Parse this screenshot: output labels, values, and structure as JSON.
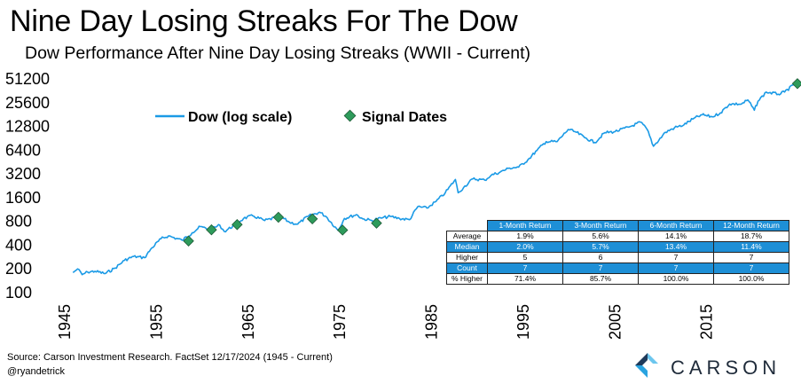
{
  "title": "Nine Day Losing Streaks For The Dow",
  "subtitle": "Dow Performance After Nine Day Losing Streaks (WWII - Current)",
  "colors": {
    "line": "#1a9ae6",
    "marker": "#2e9b5b",
    "table_header": "#1e8fd6"
  },
  "chart_data": {
    "type": "line",
    "y_scale": "log2",
    "ylim": [
      100,
      51200
    ],
    "yticks": [
      "51200",
      "25600",
      "12800",
      "6400",
      "3200",
      "1600",
      "800",
      "400",
      "200",
      "100"
    ],
    "xticks": [
      "1945",
      "1955",
      "1965",
      "1975",
      "1985",
      "1995",
      "2005",
      "2015"
    ],
    "xlim": [
      1945,
      2025
    ],
    "legend": {
      "line": "Dow (log scale)",
      "markers": "Signal Dates"
    },
    "series": [
      {
        "name": "Dow (log scale)",
        "x": [
          1945.9,
          1946.4,
          1946.9,
          1947.5,
          1948.3,
          1949.4,
          1950.5,
          1951.5,
          1952.5,
          1953.7,
          1954.5,
          1955.5,
          1956.3,
          1957.8,
          1958.9,
          1959.8,
          1960.8,
          1961.9,
          1962.4,
          1963.5,
          1964.5,
          1965.5,
          1966.8,
          1968.5,
          1969.5,
          1970.4,
          1971.5,
          1972.8,
          1973.5,
          1974.8,
          1975.5,
          1976.8,
          1977.5,
          1978.5,
          1979.5,
          1980.5,
          1981.5,
          1982.6,
          1983.5,
          1984.5,
          1985.5,
          1986.5,
          1987.6,
          1987.9,
          1988.5,
          1989.5,
          1990.8,
          1991.5,
          1992.5,
          1993.5,
          1994.5,
          1995.5,
          1996.5,
          1997.5,
          1998.7,
          1999.9,
          2000.8,
          2001.7,
          2002.8,
          2003.9,
          2005.0,
          2006.5,
          2007.8,
          2008.5,
          2009.2,
          2010.5,
          2011.5,
          2012.5,
          2013.5,
          2014.5,
          2015.6,
          2016.5,
          2017.5,
          2018.8,
          2019.5,
          2020.2,
          2020.6,
          2021.5,
          2022.8,
          2023.5,
          2024.5,
          2024.95
        ],
        "y": [
          175,
          195,
          165,
          178,
          182,
          170,
          200,
          250,
          280,
          270,
          360,
          470,
          510,
          450,
          560,
          670,
          610,
          700,
          580,
          700,
          850,
          920,
          800,
          900,
          760,
          720,
          900,
          1020,
          900,
          600,
          850,
          950,
          840,
          800,
          860,
          900,
          850,
          820,
          1200,
          1150,
          1400,
          1800,
          2650,
          1800,
          2100,
          2700,
          2600,
          3000,
          3300,
          3700,
          3800,
          4700,
          6200,
          8000,
          8000,
          11400,
          10500,
          9000,
          7800,
          10400,
          10700,
          12200,
          14100,
          11500,
          7000,
          10500,
          12000,
          13000,
          15500,
          17500,
          16500,
          18500,
          24000,
          24000,
          27000,
          20000,
          26000,
          34000,
          32000,
          34000,
          42000,
          43500
        ]
      },
      {
        "name": "Signal Dates",
        "x": [
          1958.5,
          1961.0,
          1963.8,
          1968.3,
          1972.0,
          1975.3,
          1979.0,
          2024.9
        ],
        "y": [
          440,
          610,
          710,
          880,
          840,
          605,
          740,
          43500
        ]
      }
    ]
  },
  "table": {
    "headers": [
      "1-Month Return",
      "3-Month Return",
      "6-Month Return",
      "12-Month Return"
    ],
    "rows": [
      {
        "label": "Average",
        "values": [
          "1.9%",
          "5.6%",
          "14.1%",
          "18.7%"
        ]
      },
      {
        "label": "Median",
        "values": [
          "2.0%",
          "5.7%",
          "13.4%",
          "11.4%"
        ]
      },
      {
        "label": "Higher",
        "values": [
          "5",
          "6",
          "7",
          "7"
        ]
      },
      {
        "label": "Count",
        "values": [
          "7",
          "7",
          "7",
          "7"
        ]
      },
      {
        "label": "% Higher",
        "values": [
          "71.4%",
          "85.7%",
          "100.0%",
          "100.0%"
        ]
      }
    ]
  },
  "footer": {
    "source": "Source: Carson Investment Research. FactSet 12/17/2024 (1945 - Current)",
    "handle": "@ryandetrick"
  },
  "logo": {
    "text": "CARSON"
  }
}
